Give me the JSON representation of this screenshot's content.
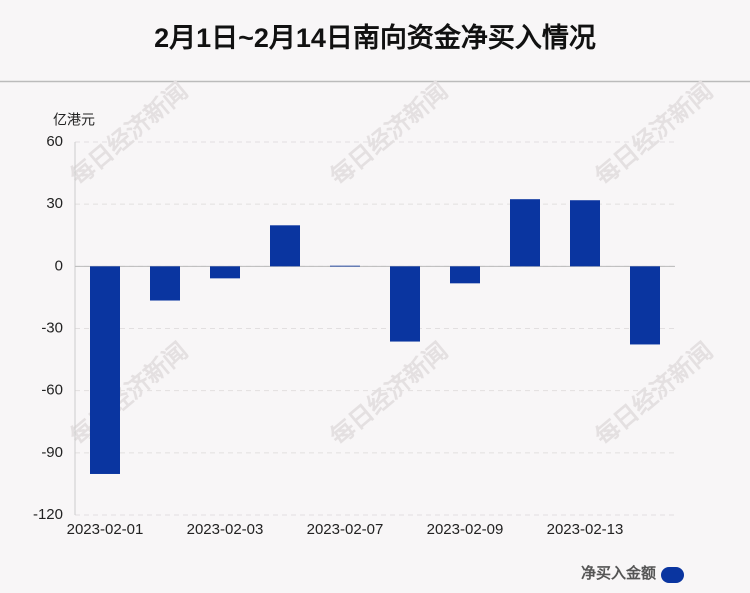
{
  "chart_data": {
    "type": "bar",
    "title": "2月1日~2月14日南向资金净买入情况",
    "y_unit": "亿港元",
    "categories": [
      "2023-02-01",
      null,
      "2023-02-03",
      null,
      "2023-02-07",
      null,
      "2023-02-09",
      null,
      "2023-02-13",
      null
    ],
    "series": [
      {
        "name": "净买入金额",
        "color": "#0a35a0",
        "values": [
          -100.2,
          -16.5,
          -5.8,
          19.8,
          0.3,
          -36.3,
          -8.2,
          32.4,
          31.9,
          -37.7
        ]
      }
    ],
    "ylim": [
      -120,
      60
    ],
    "yticks": [
      -120,
      -90,
      -60,
      -30,
      0,
      30,
      60
    ],
    "grid": true,
    "legend": "bottom-right"
  },
  "watermark": "每日经济新闻"
}
